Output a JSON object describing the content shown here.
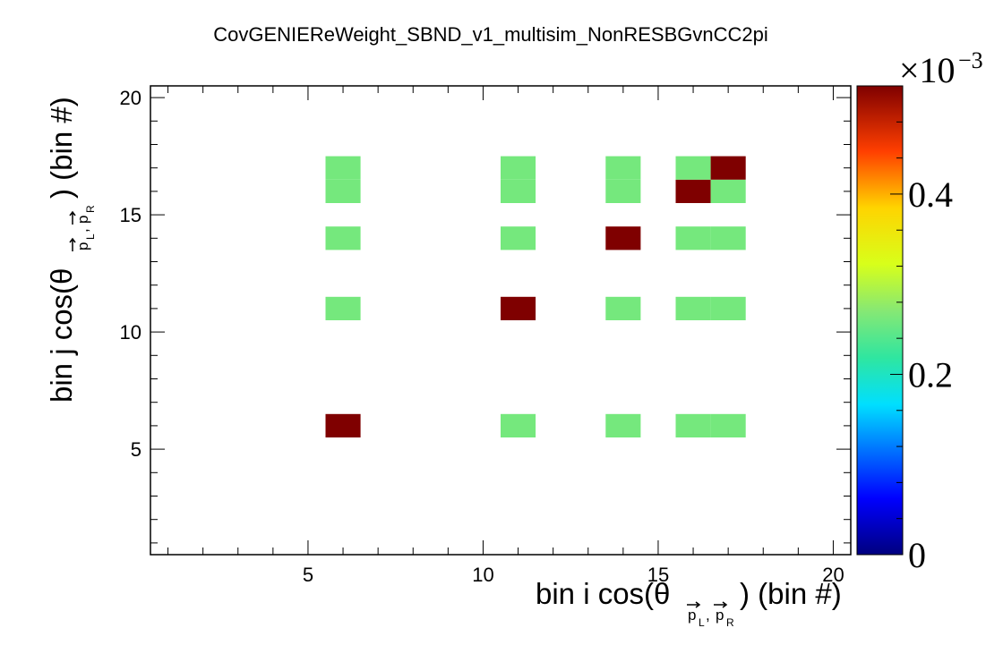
{
  "chart_data": {
    "type": "heatmap",
    "title": "CovGENIEReWeight_SBND_v1_multisim_NonRESBGvnCC2pi",
    "xlabel": {
      "main": "bin i cos(θ",
      "sub": "p⃗L,p⃗R",
      "sub_left": "p",
      "sub_left_index": "L",
      "sub_sep": ",",
      "sub_right": "p",
      "sub_right_index": "R",
      "tail": ") (bin #)"
    },
    "ylabel": {
      "main": "bin j cos(θ",
      "sub_left": "p",
      "sub_left_index": "L",
      "sub_sep": ",",
      "sub_right": "p",
      "sub_right_index": "R",
      "tail": ") (bin #)"
    },
    "xlim": [
      0.5,
      20.5
    ],
    "ylim": [
      0.5,
      20.5
    ],
    "x_ticks": [
      5,
      10,
      15,
      20
    ],
    "y_ticks": [
      5,
      10,
      15,
      20
    ],
    "colorbar": {
      "range": [
        0,
        0.52
      ],
      "ticks": [
        0,
        0.2,
        0.4
      ],
      "tick_labels": [
        "0",
        "0.2",
        "0.4"
      ],
      "exponent_base": "×10",
      "exponent_power": "−3",
      "colormap": [
        "#00007f",
        "#0000ff",
        "#00dfff",
        "#2fe6a0",
        "#86e874",
        "#d8ff1a",
        "#ffd400",
        "#ff3f00",
        "#7f0000"
      ]
    },
    "cells": [
      {
        "i": 6,
        "j": 6,
        "value": 0.52
      },
      {
        "i": 11,
        "j": 6,
        "value": 0.26
      },
      {
        "i": 14,
        "j": 6,
        "value": 0.26
      },
      {
        "i": 16,
        "j": 6,
        "value": 0.26
      },
      {
        "i": 17,
        "j": 6,
        "value": 0.26
      },
      {
        "i": 6,
        "j": 11,
        "value": 0.26
      },
      {
        "i": 11,
        "j": 11,
        "value": 0.52
      },
      {
        "i": 14,
        "j": 11,
        "value": 0.26
      },
      {
        "i": 16,
        "j": 11,
        "value": 0.26
      },
      {
        "i": 17,
        "j": 11,
        "value": 0.26
      },
      {
        "i": 6,
        "j": 14,
        "value": 0.26
      },
      {
        "i": 11,
        "j": 14,
        "value": 0.26
      },
      {
        "i": 14,
        "j": 14,
        "value": 0.52
      },
      {
        "i": 16,
        "j": 14,
        "value": 0.26
      },
      {
        "i": 17,
        "j": 14,
        "value": 0.26
      },
      {
        "i": 6,
        "j": 16,
        "value": 0.26
      },
      {
        "i": 11,
        "j": 16,
        "value": 0.26
      },
      {
        "i": 14,
        "j": 16,
        "value": 0.26
      },
      {
        "i": 16,
        "j": 16,
        "value": 0.52
      },
      {
        "i": 17,
        "j": 16,
        "value": 0.26
      },
      {
        "i": 6,
        "j": 17,
        "value": 0.26
      },
      {
        "i": 11,
        "j": 17,
        "value": 0.26
      },
      {
        "i": 14,
        "j": 17,
        "value": 0.26
      },
      {
        "i": 16,
        "j": 17,
        "value": 0.26
      },
      {
        "i": 17,
        "j": 17,
        "value": 0.52
      }
    ]
  }
}
